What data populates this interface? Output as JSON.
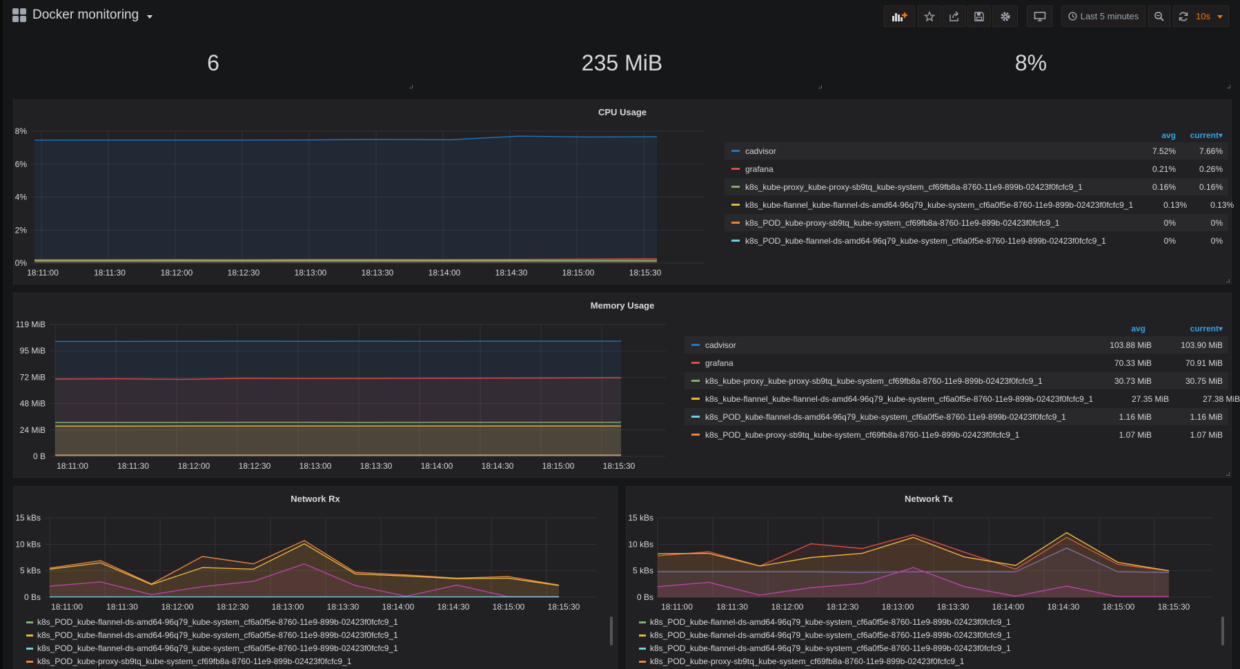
{
  "header": {
    "title": "Docker monitoring",
    "time_range": "Last 5 minutes",
    "refresh": "10s"
  },
  "stats": {
    "containers": "6",
    "memory": "235 MiB",
    "cpu": "8%"
  },
  "colors": {
    "cadvisor": "#1f78c1",
    "grafana": "#e24d42",
    "green": "#7eb26d",
    "yellow": "#eab839",
    "orange": "#ef843c",
    "cyan": "#6ed0e0",
    "purple": "#ba43a9",
    "blue": "#33a2e5"
  },
  "cpu": {
    "title": "CPU Usage",
    "legend_headers": {
      "avg": "avg",
      "current": "current▾"
    },
    "legend": [
      {
        "name": "cadvisor",
        "color": "#1f78c1",
        "avg": "7.52%",
        "current": "7.66%"
      },
      {
        "name": "grafana",
        "color": "#e24d42",
        "avg": "0.21%",
        "current": "0.26%"
      },
      {
        "name": "k8s_kube-proxy_kube-proxy-sb9tq_kube-system_cf69fb8a-8760-11e9-899b-02423f0fcfc9_1",
        "color": "#7eb26d",
        "avg": "0.16%",
        "current": "0.16%"
      },
      {
        "name": "k8s_kube-flannel_kube-flannel-ds-amd64-96q79_kube-system_cf6a0f5e-8760-11e9-899b-02423f0fcfc9_1",
        "color": "#eab839",
        "avg": "0.13%",
        "current": "0.13%"
      },
      {
        "name": "k8s_POD_kube-proxy-sb9tq_kube-system_cf69fb8a-8760-11e9-899b-02423f0fcfc9_1",
        "color": "#ef843c",
        "avg": "0%",
        "current": "0%"
      },
      {
        "name": "k8s_POD_kube-flannel-ds-amd64-96q79_kube-system_cf6a0f5e-8760-11e9-899b-02423f0fcfc9_1",
        "color": "#6ed0e0",
        "avg": "0%",
        "current": "0%"
      }
    ],
    "y_ticks": [
      "0%",
      "2%",
      "4%",
      "6%",
      "8%"
    ],
    "x_ticks": [
      "18:11:00",
      "18:11:30",
      "18:12:00",
      "18:12:30",
      "18:13:00",
      "18:13:30",
      "18:14:00",
      "18:14:30",
      "18:15:00",
      "18:15:30"
    ]
  },
  "memory": {
    "title": "Memory Usage",
    "legend_headers": {
      "avg": "avg",
      "current": "current▾"
    },
    "legend": [
      {
        "name": "cadvisor",
        "color": "#1f78c1",
        "avg": "103.88 MiB",
        "current": "103.90 MiB"
      },
      {
        "name": "grafana",
        "color": "#e24d42",
        "avg": "70.33 MiB",
        "current": "70.91 MiB"
      },
      {
        "name": "k8s_kube-proxy_kube-proxy-sb9tq_kube-system_cf69fb8a-8760-11e9-899b-02423f0fcfc9_1",
        "color": "#7eb26d",
        "avg": "30.73 MiB",
        "current": "30.75 MiB"
      },
      {
        "name": "k8s_kube-flannel_kube-flannel-ds-amd64-96q79_kube-system_cf6a0f5e-8760-11e9-899b-02423f0fcfc9_1",
        "color": "#eab839",
        "avg": "27.35 MiB",
        "current": "27.38 MiB"
      },
      {
        "name": "k8s_POD_kube-flannel-ds-amd64-96q79_kube-system_cf6a0f5e-8760-11e9-899b-02423f0fcfc9_1",
        "color": "#6ed0e0",
        "avg": "1.16 MiB",
        "current": "1.16 MiB"
      },
      {
        "name": "k8s_POD_kube-proxy-sb9tq_kube-system_cf69fb8a-8760-11e9-899b-02423f0fcfc9_1",
        "color": "#ef843c",
        "avg": "1.07 MiB",
        "current": "1.07 MiB"
      }
    ],
    "y_ticks": [
      "0 B",
      "24 MiB",
      "48 MiB",
      "72 MiB",
      "95 MiB",
      "119 MiB"
    ],
    "x_ticks": [
      "18:11:00",
      "18:11:30",
      "18:12:00",
      "18:12:30",
      "18:13:00",
      "18:13:30",
      "18:14:00",
      "18:14:30",
      "18:15:00",
      "18:15:30"
    ]
  },
  "network_rx": {
    "title": "Network Rx",
    "y_ticks": [
      "0 Bs",
      "5 kBs",
      "10 kBs",
      "15 kBs"
    ],
    "x_ticks": [
      "18:11:00",
      "18:11:30",
      "18:12:00",
      "18:12:30",
      "18:13:00",
      "18:13:30",
      "18:14:00",
      "18:14:30",
      "18:15:00",
      "18:15:30"
    ],
    "legend": [
      {
        "name": "k8s_POD_kube-flannel-ds-amd64-96q79_kube-system_cf6a0f5e-8760-11e9-899b-02423f0fcfc9_1",
        "color": "#7eb26d"
      },
      {
        "name": "k8s_POD_kube-flannel-ds-amd64-96q79_kube-system_cf6a0f5e-8760-11e9-899b-02423f0fcfc9_1",
        "color": "#eab839"
      },
      {
        "name": "k8s_POD_kube-flannel-ds-amd64-96q79_kube-system_cf6a0f5e-8760-11e9-899b-02423f0fcfc9_1",
        "color": "#6ed0e0"
      },
      {
        "name": "k8s_POD_kube-proxy-sb9tq_kube-system_cf69fb8a-8760-11e9-899b-02423f0fcfc9_1",
        "color": "#ef843c"
      }
    ]
  },
  "network_tx": {
    "title": "Network Tx",
    "y_ticks": [
      "0 Bs",
      "5 kBs",
      "10 kBs",
      "15 kBs"
    ],
    "x_ticks": [
      "18:11:00",
      "18:11:30",
      "18:12:00",
      "18:12:30",
      "18:13:00",
      "18:13:30",
      "18:14:00",
      "18:14:30",
      "18:15:00",
      "18:15:30"
    ],
    "legend": [
      {
        "name": "k8s_POD_kube-flannel-ds-amd64-96q79_kube-system_cf6a0f5e-8760-11e9-899b-02423f0fcfc9_1",
        "color": "#7eb26d"
      },
      {
        "name": "k8s_POD_kube-flannel-ds-amd64-96q79_kube-system_cf6a0f5e-8760-11e9-899b-02423f0fcfc9_1",
        "color": "#eab839"
      },
      {
        "name": "k8s_POD_kube-flannel-ds-amd64-96q79_kube-system_cf6a0f5e-8760-11e9-899b-02423f0fcfc9_1",
        "color": "#6ed0e0"
      },
      {
        "name": "k8s_POD_kube-proxy-sb9tq_kube-system_cf69fb8a-8760-11e9-899b-02423f0fcfc9_1",
        "color": "#ef843c"
      }
    ]
  },
  "chart_data": [
    {
      "type": "area",
      "title": "CPU Usage",
      "ylim": [
        0,
        8
      ],
      "y_unit": "%",
      "x": [
        "18:11:00",
        "18:11:30",
        "18:12:00",
        "18:12:30",
        "18:13:00",
        "18:13:30",
        "18:14:00",
        "18:14:30",
        "18:15:00",
        "18:15:30"
      ],
      "series": [
        {
          "name": "cadvisor",
          "color": "#1f78c1",
          "values": [
            7.45,
            7.46,
            7.46,
            7.46,
            7.47,
            7.5,
            7.48,
            7.7,
            7.65,
            7.66
          ]
        },
        {
          "name": "grafana",
          "color": "#e24d42",
          "values": [
            0.2,
            0.2,
            0.21,
            0.2,
            0.22,
            0.22,
            0.21,
            0.22,
            0.24,
            0.26
          ]
        },
        {
          "name": "k8s_kube-flannel_kube-flannel-ds-amd64-96q79_kube-system_cf6a0f5e-8760-11e9-899b-02423f0fcfc9_1",
          "color": "#eab839",
          "values": [
            0.13,
            0.13,
            0.13,
            0.13,
            0.13,
            0.13,
            0.13,
            0.13,
            0.13,
            0.13
          ]
        },
        {
          "name": "k8s_kube-proxy_kube-proxy-sb9tq_kube-system_cf69fb8a-8760-11e9-899b-02423f0fcfc9_1",
          "color": "#7eb26d",
          "values": [
            0.16,
            0.16,
            0.16,
            0.16,
            0.16,
            0.16,
            0.16,
            0.16,
            0.16,
            0.16
          ]
        }
      ]
    },
    {
      "type": "area",
      "title": "Memory Usage",
      "ylim": [
        0,
        119
      ],
      "y_unit": "MiB",
      "x": [
        "18:11:00",
        "18:11:30",
        "18:12:00",
        "18:12:30",
        "18:13:00",
        "18:13:30",
        "18:14:00",
        "18:14:30",
        "18:15:00",
        "18:15:30"
      ],
      "series": [
        {
          "name": "cadvisor",
          "color": "#1f78c1",
          "values": [
            103.8,
            103.8,
            103.85,
            103.9,
            103.85,
            103.9,
            103.88,
            103.9,
            103.9,
            103.9
          ]
        },
        {
          "name": "grafana",
          "color": "#e24d42",
          "values": [
            69.8,
            70,
            69.5,
            70.4,
            70.2,
            70.3,
            70.5,
            70.6,
            70.8,
            70.9
          ]
        },
        {
          "name": "k8s_kube-proxy_kube-proxy-sb9tq_kube-system_cf69fb8a-8760-11e9-899b-02423f0fcfc9_1",
          "color": "#7eb26d",
          "values": [
            30.7,
            30.7,
            30.7,
            30.75,
            30.75,
            30.7,
            30.75,
            30.75,
            30.75,
            30.75
          ]
        },
        {
          "name": "k8s_kube-flannel_kube-flannel-ds-amd64-96q79_kube-system_cf6a0f5e-8760-11e9-899b-02423f0fcfc9_1",
          "color": "#eab839",
          "values": [
            27.3,
            27.3,
            27.35,
            27.35,
            27.35,
            27.35,
            27.38,
            27.38,
            27.38,
            27.38
          ]
        },
        {
          "name": "k8s_POD_kube-flannel-ds-amd64-96q79_kube-system_cf6a0f5e-8760-11e9-899b-02423f0fcfc9_1",
          "color": "#6ed0e0",
          "values": [
            1.16,
            1.16,
            1.16,
            1.16,
            1.16,
            1.16,
            1.16,
            1.16,
            1.16,
            1.16
          ]
        },
        {
          "name": "k8s_POD_kube-proxy-sb9tq_kube-system_cf69fb8a-8760-11e9-899b-02423f0fcfc9_1",
          "color": "#ef843c",
          "values": [
            1.07,
            1.07,
            1.07,
            1.07,
            1.07,
            1.07,
            1.07,
            1.07,
            1.07,
            1.07
          ]
        }
      ]
    },
    {
      "type": "area",
      "title": "Network Rx",
      "ylim": [
        0,
        15
      ],
      "y_unit": "kBs",
      "x": [
        "18:11:00",
        "18:11:15",
        "18:11:30",
        "18:12:00",
        "18:12:30",
        "18:13:00",
        "18:13:30",
        "18:14:00",
        "18:14:30",
        "18:15:00",
        "18:15:30"
      ],
      "series": [
        {
          "name": "k8s_POD_kube-proxy-sb9tq_kube-system_cf69fb8a-8760-11e9-899b-02423f0fcfc9_1",
          "color": "#ef843c",
          "values": [
            5.5,
            6.9,
            2.5,
            7.7,
            6.3,
            10.7,
            4.7,
            4.2,
            3.6,
            3.9,
            2.3
          ]
        },
        {
          "name": "k8s_POD_kube-flannel-ds-amd64-96q79_kube-system_cf6a0f5e-8760-11e9-899b-02423f0fcfc9_1",
          "color": "#eab839",
          "values": [
            5.3,
            6.5,
            2.4,
            5.6,
            5.3,
            10.1,
            4.4,
            4.0,
            3.5,
            3.6,
            2.2
          ]
        },
        {
          "name": "k8s_POD_kube-flannel-ds-amd64-96q79_kube-system_cf6a0f5e-8760-11e9-899b-02423f0fcfc9_1",
          "color": "#ba43a9",
          "values": [
            2.1,
            2.9,
            0.5,
            2.0,
            3.0,
            6.3,
            2.2,
            0.2,
            2.3,
            0.1,
            0.1
          ]
        },
        {
          "name": "k8s_POD_kube-flannel-ds-amd64-96q79_kube-system_cf6a0f5e-8760-11e9-899b-02423f0fcfc9_1",
          "color": "#6ed0e0",
          "values": [
            0.05,
            0.05,
            0.05,
            0.05,
            0.05,
            0.05,
            0.05,
            0.05,
            0.05,
            0.05,
            0.05
          ]
        }
      ]
    },
    {
      "type": "area",
      "title": "Network Tx",
      "ylim": [
        0,
        15
      ],
      "y_unit": "kBs",
      "x": [
        "18:11:00",
        "18:11:15",
        "18:11:30",
        "18:12:00",
        "18:12:30",
        "18:13:00",
        "18:13:30",
        "18:14:00",
        "18:14:30",
        "18:15:00",
        "18:15:30"
      ],
      "series": [
        {
          "name": "k8s_POD_kube-proxy-sb9tq_kube-system_cf69fb8a-8760-11e9-899b-02423f0fcfc9_1",
          "color": "#e24d42",
          "values": [
            7.8,
            8.6,
            5.9,
            10.1,
            9.2,
            11.8,
            8.5,
            5.3,
            11.3,
            6.2,
            5.0
          ]
        },
        {
          "name": "k8s_POD_kube-flannel-ds-amd64-96q79_kube-system_cf6a0f5e-8760-11e9-899b-02423f0fcfc9_1",
          "color": "#eab839",
          "values": [
            8.2,
            8.3,
            5.9,
            7.5,
            8.3,
            11.3,
            7.6,
            6.0,
            12.2,
            6.6,
            5.0
          ]
        },
        {
          "name": "k8s_POD_kube-flannel-ds-amd64-96q79_kube-system_cf6a0f5e-8760-11e9-899b-02423f0fcfc9_1",
          "color": "#7c6fa8",
          "values": [
            4.8,
            4.8,
            4.8,
            4.8,
            4.7,
            4.8,
            4.8,
            4.8,
            9.3,
            4.8,
            4.7
          ]
        },
        {
          "name": "k8s_POD_kube-flannel-ds-amd64-96q79_kube-system_cf6a0f5e-8760-11e9-899b-02423f0fcfc9_1",
          "color": "#ba43a9",
          "values": [
            2.0,
            2.8,
            0.4,
            1.8,
            2.6,
            5.6,
            2.0,
            0.2,
            2.1,
            0.1,
            0.1
          ]
        }
      ]
    }
  ]
}
